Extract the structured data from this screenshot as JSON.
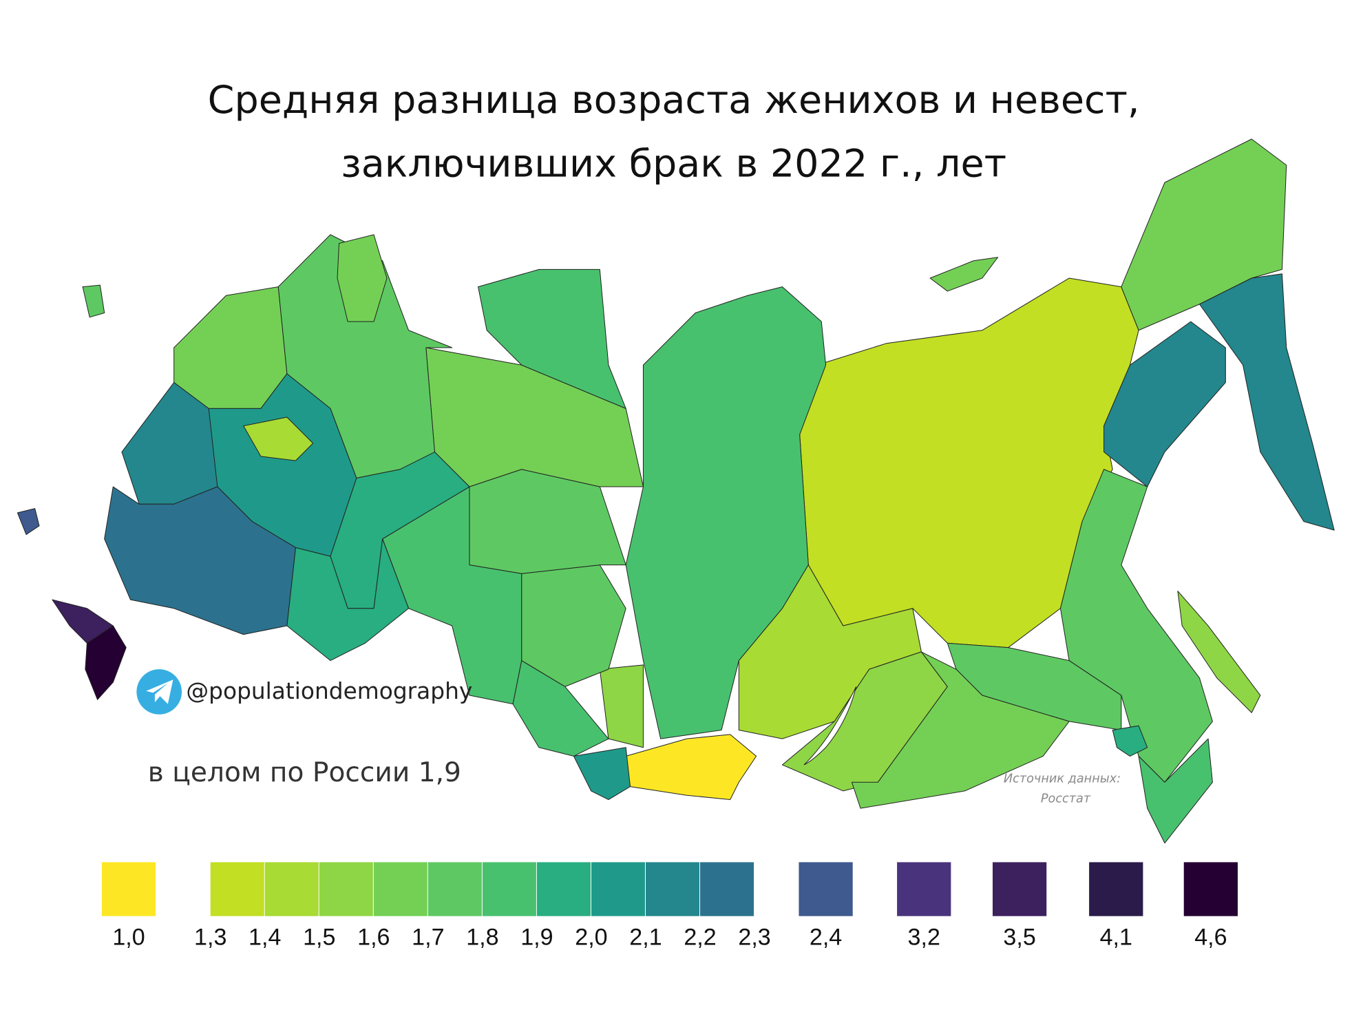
{
  "title": {
    "line1": "Средняя разница возраста женихов и невест,",
    "line2": "заключивших брак в 2022 г., лет"
  },
  "telegram": {
    "icon": "telegram-icon",
    "handle": "@populationdemography",
    "color": "#37aee2"
  },
  "total": "в целом по России 1,9",
  "source": {
    "line1": "Источник   данных:",
    "line2": "Росстат"
  },
  "legend": {
    "single_low": {
      "label": "1,0",
      "color": "#fde725"
    },
    "scale": {
      "labels": [
        "1,3",
        "1,4",
        "1,5",
        "1,6",
        "1,7",
        "1,8",
        "1,9",
        "2,0",
        "2,1",
        "2,2",
        "2,3"
      ],
      "colors": [
        "#c2df23",
        "#a8db34",
        "#8ed645",
        "#74d055",
        "#5ec962",
        "#48c16e",
        "#28ae80",
        "#1f9a8a",
        "#23878d",
        "#2c728e"
      ]
    },
    "singles": [
      {
        "label": "2,4",
        "color": "#3e5a8f"
      },
      {
        "label": "3,2",
        "color": "#4a337d"
      },
      {
        "label": "3,5",
        "color": "#3d205e"
      },
      {
        "label": "4,1",
        "color": "#2b1b4a"
      },
      {
        "label": "4,6",
        "color": "#250033"
      }
    ]
  },
  "regions": [
    {
      "value": 1.3,
      "color": "#c2df23"
    },
    {
      "value": 1.8,
      "color": "#48c16e"
    },
    {
      "value": 1.6,
      "color": "#74d055"
    },
    {
      "value": 1.6,
      "color": "#74d055"
    },
    {
      "value": 2.1,
      "color": "#23878d"
    },
    {
      "value": 2.1,
      "color": "#23878d"
    },
    {
      "value": 1.7,
      "color": "#5ec962"
    },
    {
      "value": 1.7,
      "color": "#5ec962"
    },
    {
      "value": 1.5,
      "color": "#8ed645"
    },
    {
      "value": 1.4,
      "color": "#a8db34"
    },
    {
      "value": 1.9,
      "color": "#28ae80"
    },
    {
      "value": 1.8,
      "color": "#48c16e"
    },
    {
      "value": 1.5,
      "color": "#8ed645"
    },
    {
      "value": 1.6,
      "color": "#74d055"
    },
    {
      "value": 1.0,
      "color": "#fde725"
    },
    {
      "value": 2.0,
      "color": "#1f9a8a"
    },
    {
      "value": 1.5,
      "color": "#8ed645"
    },
    {
      "value": 1.7,
      "color": "#5ec962"
    },
    {
      "value": 1.8,
      "color": "#48c16e"
    },
    {
      "value": 1.7,
      "color": "#5ec962"
    },
    {
      "value": 1.8,
      "color": "#48c16e"
    },
    {
      "value": 1.6,
      "color": "#74d055"
    },
    {
      "value": 1.8,
      "color": "#48c16e"
    },
    {
      "value": 1.9,
      "color": "#28ae80"
    },
    {
      "value": 1.7,
      "color": "#5ec962"
    },
    {
      "value": 1.6,
      "color": "#74d055"
    },
    {
      "value": 1.9,
      "color": "#28ae80"
    },
    {
      "value": 2.0,
      "color": "#1f9a8a"
    },
    {
      "value": 2.1,
      "color": "#23878d"
    },
    {
      "value": 2.2,
      "color": "#2c728e"
    },
    {
      "value": 3.5,
      "color": "#3d205e"
    },
    {
      "value": 4.6,
      "color": "#250033"
    },
    {
      "value": 2.4,
      "color": "#3e5a8f"
    },
    {
      "value": 1.7,
      "color": "#5ec962"
    },
    {
      "value": 1.6,
      "color": "#74d055"
    },
    {
      "value": 1.4,
      "color": "#a8db34"
    }
  ]
}
